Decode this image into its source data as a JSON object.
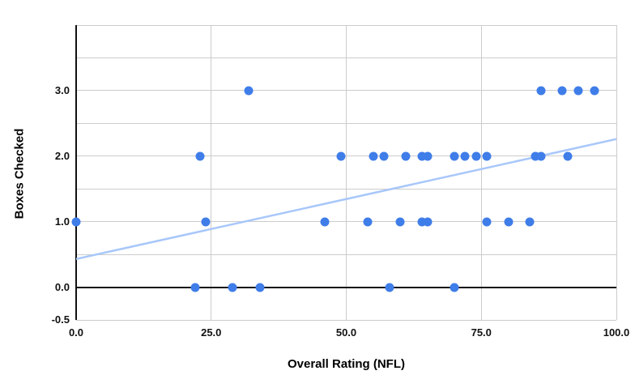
{
  "chart_data": {
    "type": "scatter",
    "title": "",
    "xlabel": "Overall Rating (NFL)",
    "ylabel": "Boxes Checked",
    "xlim": [
      0,
      100
    ],
    "ylim": [
      -0.5,
      4.0
    ],
    "legend": "none",
    "grid": {
      "y_light": [
        4.0,
        3.5,
        3.0,
        2.5,
        2.0,
        1.5,
        1.0,
        0.5,
        -0.5
      ],
      "x_light": [
        25,
        50,
        75,
        100
      ],
      "x_axis_at_y": 0.0,
      "y_axis_at_x": 0.0
    },
    "x_ticks": [
      {
        "value": 0,
        "label": "0.0"
      },
      {
        "value": 25,
        "label": "25.0"
      },
      {
        "value": 50,
        "label": "50.0"
      },
      {
        "value": 75,
        "label": "75.0"
      },
      {
        "value": 100,
        "label": "100.0"
      }
    ],
    "y_ticks": [
      {
        "value": 3,
        "label": "3.0"
      },
      {
        "value": 2,
        "label": "2.0"
      },
      {
        "value": 1,
        "label": "1.0"
      },
      {
        "value": 0,
        "label": "0.0"
      },
      {
        "value": -0.5,
        "label": "-0.5"
      }
    ],
    "points": [
      [
        22,
        0
      ],
      [
        29,
        0
      ],
      [
        34,
        0
      ],
      [
        58,
        0
      ],
      [
        70,
        0
      ],
      [
        0,
        1
      ],
      [
        24,
        1
      ],
      [
        46,
        1
      ],
      [
        54,
        1
      ],
      [
        60,
        1
      ],
      [
        64,
        1
      ],
      [
        65,
        1
      ],
      [
        76,
        1
      ],
      [
        80,
        1
      ],
      [
        84,
        1
      ],
      [
        23,
        2
      ],
      [
        49,
        2
      ],
      [
        55,
        2
      ],
      [
        57,
        2
      ],
      [
        61,
        2
      ],
      [
        64,
        2
      ],
      [
        65,
        2
      ],
      [
        70,
        2
      ],
      [
        72,
        2
      ],
      [
        74,
        2
      ],
      [
        76,
        2
      ],
      [
        85,
        2
      ],
      [
        86,
        2
      ],
      [
        91,
        2
      ],
      [
        32,
        3
      ],
      [
        86,
        3
      ],
      [
        90,
        3
      ],
      [
        93,
        3
      ],
      [
        96,
        3
      ]
    ],
    "trendline": {
      "x": [
        0,
        100
      ],
      "y": [
        0.43,
        2.26
      ]
    }
  },
  "colors": {
    "point": "#3f7de9",
    "trendline": "#a8c7fa",
    "gridline": "#cccccc",
    "axis": "#111111",
    "tick_text": "#111111",
    "label_text": "#000000",
    "background": "#ffffff"
  }
}
